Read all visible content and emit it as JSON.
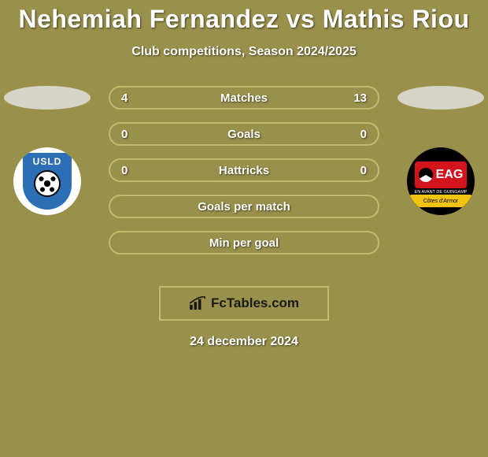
{
  "background_color": "#99914b",
  "title": {
    "text": "Nehemiah Fernandez vs Mathis Riou",
    "color": "#ffffff",
    "fontsize": 32
  },
  "subtitle": {
    "text": "Club competitions, Season 2024/2025",
    "color": "#ffffff",
    "fontsize": 16
  },
  "players": {
    "left": {
      "name": "Nehemiah Fernandez",
      "photo_bg": "#d6d4c6",
      "club": {
        "name": "USLD",
        "badge_bg": "#ffffff",
        "shield_color": "#2d6fb5",
        "text_color": "#2d6fb5",
        "ball_color": "#ffffff",
        "ball_border": "#0a0a0a"
      }
    },
    "right": {
      "name": "Mathis Riou",
      "photo_bg": "#d6d4c6",
      "club": {
        "name": "EAG",
        "badge_bg": "#000000",
        "logo_bg": "#d4141c",
        "logo_text_color": "#ffffff",
        "band_bg": "#f2c40e",
        "band_text": "Côtes d'Armor",
        "band_text_color": "#000000",
        "subtext": "EN AVANT DE GUINGAMP",
        "subtext_color": "#ffffff"
      }
    }
  },
  "stats": {
    "bar_style": {
      "fill": "#99914b",
      "border": "#c4bb6e",
      "text_color": "#ffffff",
      "value_color": "#ffffff",
      "height": 30,
      "radius": 15,
      "fontsize": 15
    },
    "rows": [
      {
        "label": "Matches",
        "left": "4",
        "right": "13"
      },
      {
        "label": "Goals",
        "left": "0",
        "right": "0"
      },
      {
        "label": "Hattricks",
        "left": "0",
        "right": "0"
      },
      {
        "label": "Goals per match",
        "left": "",
        "right": ""
      },
      {
        "label": "Min per goal",
        "left": "",
        "right": ""
      }
    ]
  },
  "brand": {
    "text": "FcTables.com",
    "border_color": "#c4bb6e",
    "text_color": "#1a1a1a",
    "icon_color": "#1a1a1a",
    "bg": "#99914b"
  },
  "date": {
    "text": "24 december 2024",
    "color": "#ffffff",
    "fontsize": 16
  }
}
